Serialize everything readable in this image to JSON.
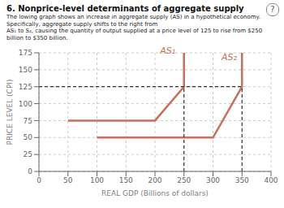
{
  "chart_data": {
    "type": "line",
    "title": "6. Nonprice-level determinants of aggregate supply",
    "subtitle": [
      "The lowing graph shows an increase in aggregate supply (AS) in a hypothetical economy. Specifically, aggregate supply shifts to the right from",
      "AS₁ to S₂, causing the quantity of output supplied at a price level of 125 to rise from $250 billion to $350 billion."
    ],
    "xlabel": "REAL GDP (Billions of dollars)",
    "ylabel": "PRICE LEVEL (CPI)",
    "xlim": [
      0,
      400
    ],
    "ylim": [
      0,
      175
    ],
    "xticks": [
      0,
      50,
      100,
      150,
      200,
      250,
      300,
      350,
      400
    ],
    "yticks": [
      0,
      25,
      50,
      75,
      100,
      125,
      150,
      175
    ],
    "grid": true,
    "series": [
      {
        "name": "AS₁",
        "color": "#c8705a",
        "x": [
          50,
          200,
          250,
          250
        ],
        "values": [
          75,
          75,
          125,
          175
        ]
      },
      {
        "name": "AS₂",
        "color": "#c8705a",
        "x": [
          100,
          300,
          350,
          350
        ],
        "values": [
          50,
          50,
          125,
          175
        ]
      },
      {
        "color": "#333333",
        "line_style": "dashed",
        "x": [
          0,
          350
        ],
        "values": [
          125,
          125
        ]
      },
      {
        "color": "#333333",
        "line_style": "dashed",
        "x": [
          250,
          250
        ],
        "values": [
          0,
          125
        ]
      },
      {
        "color": "#333333",
        "line_style": "dashed",
        "x": [
          350,
          350
        ],
        "values": [
          0,
          125
        ]
      }
    ],
    "annotations": [
      {
        "text": "AS₁",
        "x": 222,
        "y": 168,
        "color": "#c8705a"
      },
      {
        "text": "AS₂",
        "x": 328,
        "y": 158,
        "color": "#c8705a"
      },
      {
        "text": "?"
      }
    ]
  }
}
